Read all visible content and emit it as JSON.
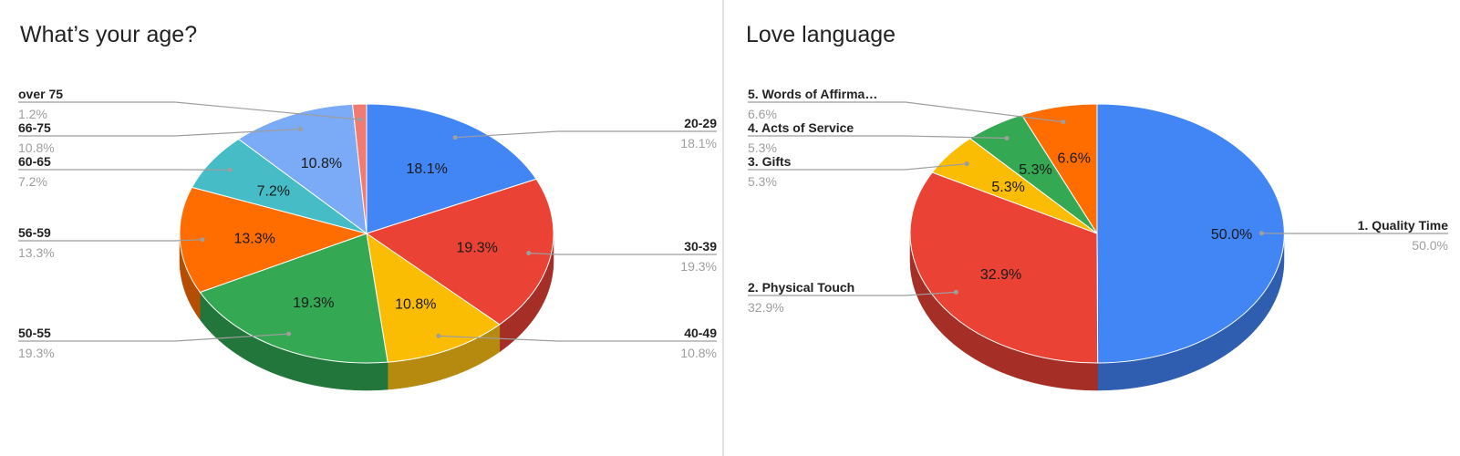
{
  "chart_data": [
    {
      "type": "pie",
      "title": "What’s your age?",
      "colors": {
        "front_side": true
      },
      "slices": [
        {
          "label": "20-29",
          "value": 18.1,
          "display": "18.1%",
          "color": "#4285f4",
          "dark": "#2f5eb0"
        },
        {
          "label": "30-39",
          "value": 19.3,
          "display": "19.3%",
          "color": "#ea4335",
          "dark": "#a52f26"
        },
        {
          "label": "40-49",
          "value": 10.8,
          "display": "10.8%",
          "color": "#fbbc04",
          "dark": "#b58a0f"
        },
        {
          "label": "50-55",
          "value": 19.3,
          "display": "19.3%",
          "color": "#34a853",
          "dark": "#23763b"
        },
        {
          "label": "56-59",
          "value": 13.3,
          "display": "13.3%",
          "color": "#ff6d01",
          "dark": "#b54d02"
        },
        {
          "label": "60-65",
          "value": 7.2,
          "display": "7.2%",
          "color": "#46bdc6",
          "dark": "#2f868c"
        },
        {
          "label": "66-75",
          "value": 10.8,
          "display": "10.8%",
          "color": "#7baaf7",
          "dark": "#5676ad"
        },
        {
          "label": "over 75",
          "value": 1.2,
          "display": "1.2%",
          "color": "#f07b72",
          "dark": "#a95750"
        }
      ]
    },
    {
      "type": "pie",
      "title": "Love language",
      "slices": [
        {
          "label": "1. Quality Time",
          "value": 50.0,
          "display": "50.0%",
          "color": "#4285f4",
          "dark": "#2f5eb0"
        },
        {
          "label": "2. Physical Touch",
          "value": 32.9,
          "display": "32.9%",
          "color": "#ea4335",
          "dark": "#a52f26"
        },
        {
          "label": "3. Gifts",
          "value": 5.3,
          "display": "5.3%",
          "color": "#fbbc04",
          "dark": "#b58a0f"
        },
        {
          "label": "4. Acts of Service",
          "value": 5.3,
          "display": "5.3%",
          "color": "#34a853",
          "dark": "#23763b"
        },
        {
          "label": "5. Words of Affirma…",
          "value": 6.6,
          "display": "6.6%",
          "color": "#ff6d01",
          "dark": "#b54d02"
        }
      ]
    }
  ]
}
